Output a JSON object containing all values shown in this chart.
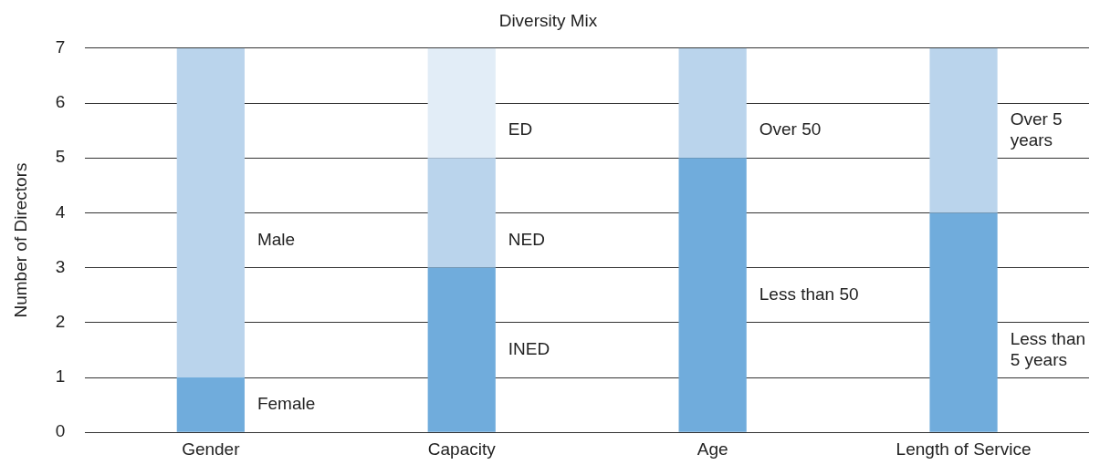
{
  "chart_data": {
    "type": "bar",
    "title": "Diversity Mix",
    "ylabel": "Number of Directors",
    "stacked": true,
    "categories": [
      "Gender",
      "Capacity",
      "Age",
      "Length of Service"
    ],
    "series": [
      {
        "name": "Female",
        "color": "#70acdc",
        "values": [
          1,
          null,
          null,
          null
        ]
      },
      {
        "name": "Male",
        "color": "#bad4ec",
        "values": [
          6,
          null,
          null,
          null
        ]
      },
      {
        "name": "INED",
        "color": "#70acdc",
        "values": [
          null,
          3,
          null,
          null
        ]
      },
      {
        "name": "NED",
        "color": "#bad4ec",
        "values": [
          null,
          2,
          null,
          null
        ]
      },
      {
        "name": "ED",
        "color": "#e2edf7",
        "values": [
          null,
          2,
          null,
          null
        ]
      },
      {
        "name": "Less than 50",
        "color": "#70acdc",
        "values": [
          null,
          null,
          5,
          null
        ]
      },
      {
        "name": "Over 50",
        "color": "#bad4ec",
        "values": [
          null,
          null,
          2,
          null
        ]
      },
      {
        "name": "Less than 5 years",
        "color": "#70acdc",
        "values": [
          null,
          null,
          null,
          4
        ]
      },
      {
        "name": "Over 5 years",
        "color": "#bad4ec",
        "values": [
          null,
          null,
          null,
          3
        ]
      }
    ],
    "ylim": [
      0,
      7
    ],
    "yticks": [
      0,
      1,
      2,
      3,
      4,
      5,
      6,
      7
    ],
    "grid": "y",
    "legend": false
  }
}
